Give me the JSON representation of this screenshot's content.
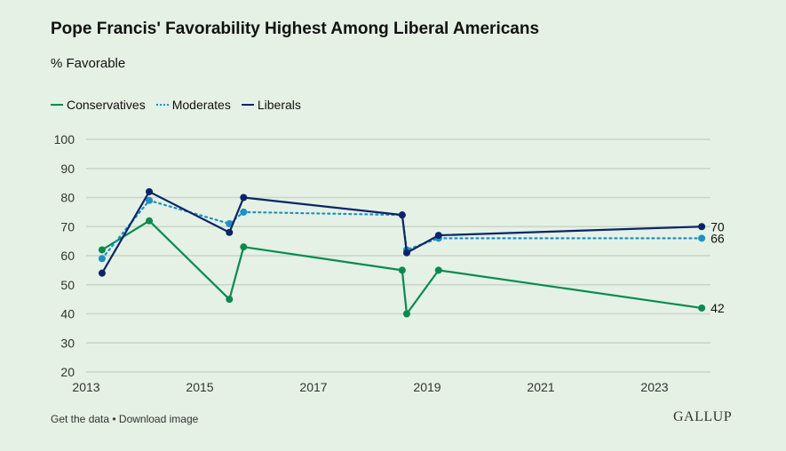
{
  "chart_data": {
    "type": "line",
    "title": "Pope Francis' Favorability Highest Among Liberal Americans",
    "subtitle": "% Favorable",
    "xlim": [
      2013,
      2024.1
    ],
    "ylim": [
      20,
      100
    ],
    "x_ticks": [
      2013,
      2015,
      2017,
      2019,
      2021,
      2023
    ],
    "y_ticks": [
      20,
      30,
      40,
      50,
      60,
      70,
      80,
      90,
      100
    ],
    "grid": true,
    "legend_position": "top-left",
    "x": [
      2013.28,
      2014.11,
      2015.52,
      2015.77,
      2018.56,
      2018.64,
      2019.2,
      2023.83
    ],
    "series": [
      {
        "name": "Conservatives",
        "color": "#0a8a4f",
        "style": "solid",
        "values": [
          62,
          72,
          45,
          63,
          55,
          40,
          55,
          42
        ],
        "end_label": "42"
      },
      {
        "name": "Moderates",
        "color": "#1e90c6",
        "style": "dotted",
        "values": [
          59,
          79,
          71,
          75,
          74,
          62,
          66,
          66
        ],
        "end_label": "66"
      },
      {
        "name": "Liberals",
        "color": "#0b2467",
        "style": "solid",
        "values": [
          54,
          82,
          68,
          80,
          74,
          61,
          67,
          70
        ],
        "end_label": "70"
      }
    ]
  },
  "footer": {
    "links": "Get the data • Download image",
    "logo": "GALLUP"
  }
}
